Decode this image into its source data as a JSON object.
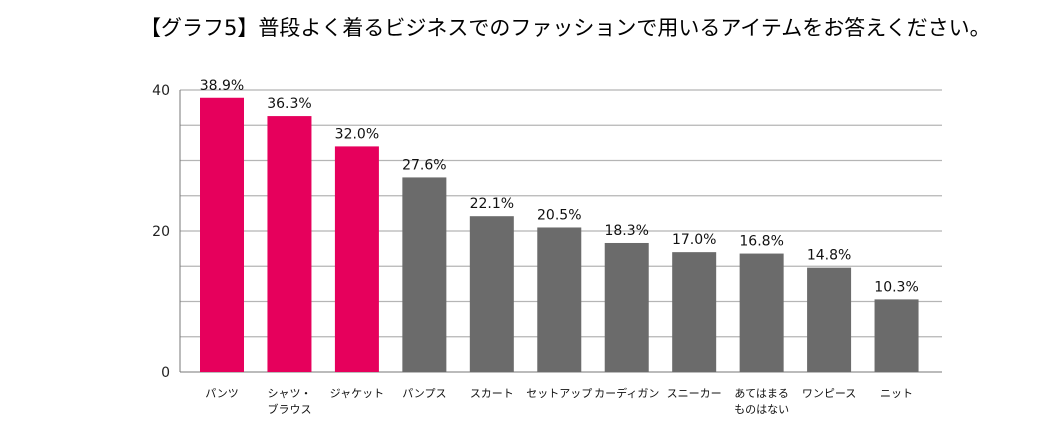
{
  "chart_data": {
    "type": "bar",
    "title": "【グラフ5】普段よく着るビジネスでのファッションで用いるアイテムをお答えください。",
    "categories": [
      [
        "パンツ"
      ],
      [
        "シャツ・",
        "ブラウス"
      ],
      [
        "ジャケット"
      ],
      [
        "パンプス"
      ],
      [
        "スカート"
      ],
      [
        "セットアップ"
      ],
      [
        "カーディガン"
      ],
      [
        "スニーカー"
      ],
      [
        "あてはまる",
        "ものはない"
      ],
      [
        "ワンピース"
      ],
      [
        "ニット"
      ]
    ],
    "values": [
      38.9,
      36.3,
      32.0,
      27.6,
      22.1,
      20.5,
      18.3,
      17.0,
      16.8,
      14.8,
      10.3
    ],
    "value_labels": [
      "38.9%",
      "36.3%",
      "32.0%",
      "27.6%",
      "22.1%",
      "20.5%",
      "18.3%",
      "17.0%",
      "16.8%",
      "14.8%",
      "10.3%"
    ],
    "bar_colors": [
      "#e6005c",
      "#e6005c",
      "#e6005c",
      "#6b6b6b",
      "#6b6b6b",
      "#6b6b6b",
      "#6b6b6b",
      "#6b6b6b",
      "#6b6b6b",
      "#6b6b6b",
      "#6b6b6b"
    ],
    "ylim": [
      0,
      40
    ],
    "yticks": [
      "0",
      "20",
      "40"
    ],
    "ytick_values": [
      0,
      20,
      40
    ],
    "gridlines": [
      5,
      10,
      15,
      20,
      25,
      30,
      35,
      40
    ],
    "grid": true,
    "legend": "none"
  }
}
